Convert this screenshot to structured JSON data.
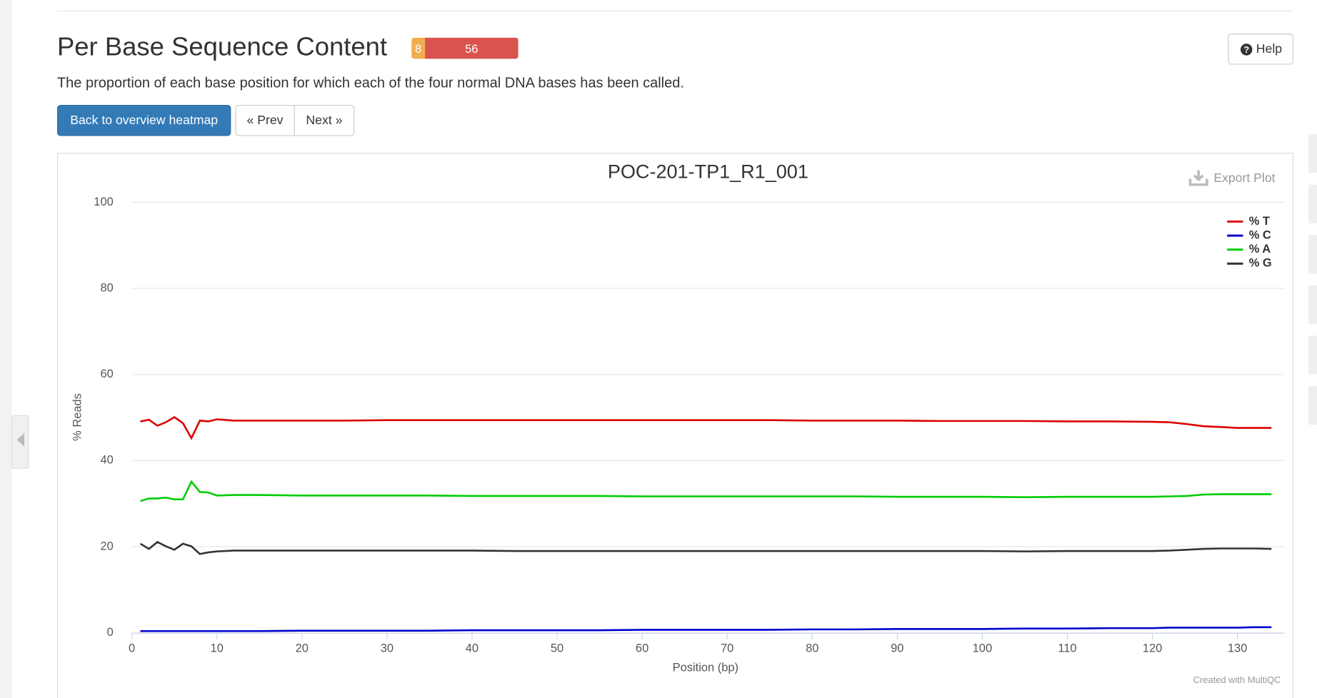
{
  "header": {
    "title": "Per Base Sequence Content",
    "badges": [
      8,
      56
    ],
    "description": "The proportion of each base position for which each of the four normal DNA bases has been called.",
    "help": "Help"
  },
  "buttons": {
    "back": "Back to overview heatmap",
    "prev": "« Prev",
    "next": "Next »"
  },
  "export": "Export Plot",
  "credit": "Created with MultiQC",
  "chart_data": {
    "type": "line",
    "title": "POC-201-TP1_R1_001",
    "x_label": "Position (bp)",
    "y_label": "% Reads",
    "x": [
      1,
      2,
      3,
      4,
      5,
      6,
      7,
      8,
      9,
      10,
      12,
      15,
      20,
      25,
      30,
      35,
      40,
      45,
      50,
      55,
      60,
      65,
      70,
      75,
      80,
      85,
      90,
      95,
      100,
      105,
      110,
      115,
      120,
      122,
      124,
      126,
      128,
      130,
      132,
      134
    ],
    "series": [
      {
        "name": "% T",
        "color": "#dc0000",
        "values": [
          49.1,
          49.5,
          48.1,
          48.9,
          50.1,
          48.7,
          45.2,
          49.3,
          49.1,
          49.6,
          49.3,
          49.3,
          49.3,
          49.3,
          49.4,
          49.4,
          49.4,
          49.4,
          49.4,
          49.4,
          49.4,
          49.4,
          49.4,
          49.4,
          49.3,
          49.3,
          49.3,
          49.2,
          49.2,
          49.2,
          49.1,
          49.1,
          49.0,
          48.9,
          48.5,
          48.0,
          47.8,
          47.6,
          47.6,
          47.6
        ]
      },
      {
        "name": "% C",
        "color": "#0000cc",
        "values": [
          0.4,
          0.4,
          0.4,
          0.4,
          0.4,
          0.4,
          0.4,
          0.4,
          0.4,
          0.4,
          0.4,
          0.4,
          0.5,
          0.5,
          0.5,
          0.5,
          0.6,
          0.6,
          0.6,
          0.6,
          0.7,
          0.7,
          0.7,
          0.7,
          0.8,
          0.8,
          0.9,
          0.9,
          0.9,
          1.0,
          1.0,
          1.1,
          1.1,
          1.2,
          1.2,
          1.2,
          1.2,
          1.2,
          1.3,
          1.3
        ]
      },
      {
        "name": "% A",
        "color": "#00cc00",
        "values": [
          30.6,
          31.2,
          31.2,
          31.4,
          31.0,
          31.0,
          35.1,
          32.7,
          32.6,
          31.9,
          32.0,
          32.0,
          31.9,
          31.9,
          31.9,
          31.9,
          31.8,
          31.8,
          31.8,
          31.8,
          31.7,
          31.7,
          31.7,
          31.7,
          31.7,
          31.7,
          31.6,
          31.6,
          31.6,
          31.5,
          31.6,
          31.6,
          31.6,
          31.7,
          31.8,
          32.1,
          32.2,
          32.2,
          32.2,
          32.2
        ]
      },
      {
        "name": "% G",
        "color": "#333333",
        "values": [
          20.7,
          19.5,
          21.1,
          20.1,
          19.3,
          20.7,
          20.1,
          18.3,
          18.7,
          18.9,
          19.1,
          19.1,
          19.1,
          19.1,
          19.1,
          19.1,
          19.1,
          19.0,
          19.0,
          19.0,
          19.0,
          19.0,
          19.0,
          19.0,
          19.0,
          19.0,
          19.0,
          19.0,
          19.0,
          18.9,
          19.0,
          19.0,
          19.0,
          19.1,
          19.3,
          19.5,
          19.6,
          19.6,
          19.6,
          19.5
        ]
      }
    ],
    "xlim": [
      0,
      135.5
    ],
    "ylim": [
      0,
      100
    ],
    "xticks": [
      0,
      10,
      20,
      30,
      40,
      50,
      60,
      70,
      80,
      90,
      100,
      110,
      120,
      130
    ],
    "yticks": [
      0,
      20,
      40,
      60,
      80,
      100
    ],
    "grid": true,
    "legend": "top-right"
  }
}
